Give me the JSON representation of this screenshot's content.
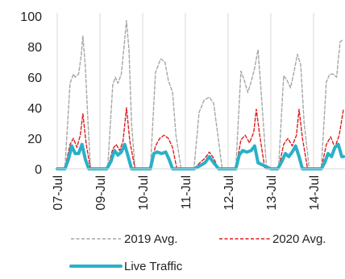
{
  "chart_data": {
    "type": "line",
    "x_labels": [
      "07-Jul",
      "09-Jul",
      "10-Jul",
      "11-Jul",
      "12-Jul",
      "13-Jul",
      "14-Jul"
    ],
    "ylim": [
      0,
      100
    ],
    "y_ticks": [
      0,
      20,
      40,
      60,
      80,
      100
    ],
    "grid": "vertical lines at day boundaries",
    "legend_position": "bottom",
    "series": [
      {
        "name": "2019 Avg.",
        "color": "#a6a6a6",
        "style": "dashed",
        "x": [
          0,
          0.18,
          0.3,
          0.38,
          0.42,
          0.5,
          0.56,
          0.6,
          0.66,
          0.72,
          0.78,
          0.86,
          1.0,
          1.18,
          1.3,
          1.36,
          1.42,
          1.5,
          1.56,
          1.62,
          1.68,
          1.74,
          1.82,
          1.9,
          2.0,
          2.18,
          2.3,
          2.42,
          2.52,
          2.6,
          2.7,
          2.78,
          2.9,
          3.0,
          3.2,
          3.32,
          3.44,
          3.56,
          3.66,
          3.76,
          3.86,
          4.0,
          4.18,
          4.3,
          4.38,
          4.46,
          4.54,
          4.62,
          4.7,
          4.78,
          4.9,
          5.0,
          5.18,
          5.3,
          5.38,
          5.46,
          5.54,
          5.62,
          5.7,
          5.78,
          5.9,
          6.0,
          6.18,
          6.3,
          6.38,
          6.46,
          6.54,
          6.62,
          6.7
        ],
        "y": [
          0,
          0,
          56,
          62,
          60,
          62,
          74,
          87,
          66,
          30,
          0,
          0,
          0,
          0,
          55,
          60,
          56,
          62,
          79,
          97,
          78,
          30,
          0,
          0,
          0,
          0,
          63,
          72,
          70,
          58,
          50,
          22,
          0,
          0,
          0,
          37,
          45,
          47,
          43,
          22,
          0,
          0,
          0,
          64,
          58,
          50,
          57,
          66,
          78,
          48,
          0,
          0,
          0,
          61,
          58,
          53,
          63,
          75,
          68,
          30,
          0,
          0,
          0,
          57,
          62,
          62,
          60,
          83,
          85
        ]
      },
      {
        "name": "2020 Avg.",
        "color": "#e01b1b",
        "style": "dashed",
        "x": [
          0,
          0.18,
          0.3,
          0.38,
          0.46,
          0.54,
          0.6,
          0.68,
          0.78,
          1.0,
          1.18,
          1.3,
          1.38,
          1.46,
          1.54,
          1.62,
          1.7,
          1.82,
          2.0,
          2.18,
          2.3,
          2.4,
          2.5,
          2.6,
          2.7,
          2.8,
          3.0,
          3.2,
          3.34,
          3.46,
          3.56,
          3.66,
          3.78,
          4.0,
          4.18,
          4.3,
          4.4,
          4.5,
          4.6,
          4.66,
          4.74,
          4.86,
          5.0,
          5.18,
          5.3,
          5.4,
          5.5,
          5.6,
          5.66,
          5.74,
          5.86,
          6.0,
          6.18,
          6.3,
          6.4,
          6.5,
          6.6,
          6.7
        ],
        "y": [
          0,
          0,
          16,
          20,
          14,
          22,
          36,
          16,
          0,
          0,
          0,
          13,
          16,
          12,
          18,
          40,
          18,
          0,
          0,
          0,
          15,
          20,
          22,
          20,
          14,
          0,
          0,
          0,
          4,
          7,
          11,
          7,
          0,
          0,
          0,
          19,
          22,
          17,
          24,
          39,
          22,
          0,
          0,
          0,
          16,
          20,
          15,
          22,
          39,
          20,
          0,
          0,
          0,
          16,
          21,
          14,
          22,
          39
        ]
      },
      {
        "name": "Live Traffic",
        "color": "#2ab0c8",
        "style": "solid",
        "x": [
          0,
          0.18,
          0.26,
          0.34,
          0.42,
          0.5,
          0.58,
          0.66,
          0.74,
          1.0,
          1.16,
          1.26,
          1.34,
          1.42,
          1.5,
          1.58,
          1.66,
          1.74,
          2.0,
          2.18,
          2.26,
          2.34,
          2.44,
          2.54,
          2.62,
          2.7,
          3.0,
          3.2,
          3.34,
          3.46,
          3.56,
          3.66,
          3.78,
          4.0,
          4.18,
          4.26,
          4.34,
          4.44,
          4.54,
          4.62,
          4.7,
          5.0,
          5.16,
          5.26,
          5.34,
          5.42,
          5.5,
          5.58,
          5.66,
          5.74,
          6.0,
          6.18,
          6.26,
          6.34,
          6.42,
          6.5,
          6.58,
          6.66,
          6.7
        ],
        "y": [
          0,
          0,
          6,
          15,
          10,
          10,
          16,
          6,
          0,
          0,
          0,
          5,
          12,
          9,
          11,
          16,
          8,
          0,
          0,
          0,
          10,
          11,
          10,
          11,
          6,
          0,
          0,
          0,
          2,
          4,
          8,
          4,
          0,
          0,
          0,
          9,
          12,
          11,
          12,
          15,
          4,
          0,
          0,
          5,
          10,
          8,
          11,
          15,
          8,
          0,
          0,
          0,
          4,
          10,
          8,
          14,
          16,
          8,
          8
        ]
      }
    ]
  }
}
